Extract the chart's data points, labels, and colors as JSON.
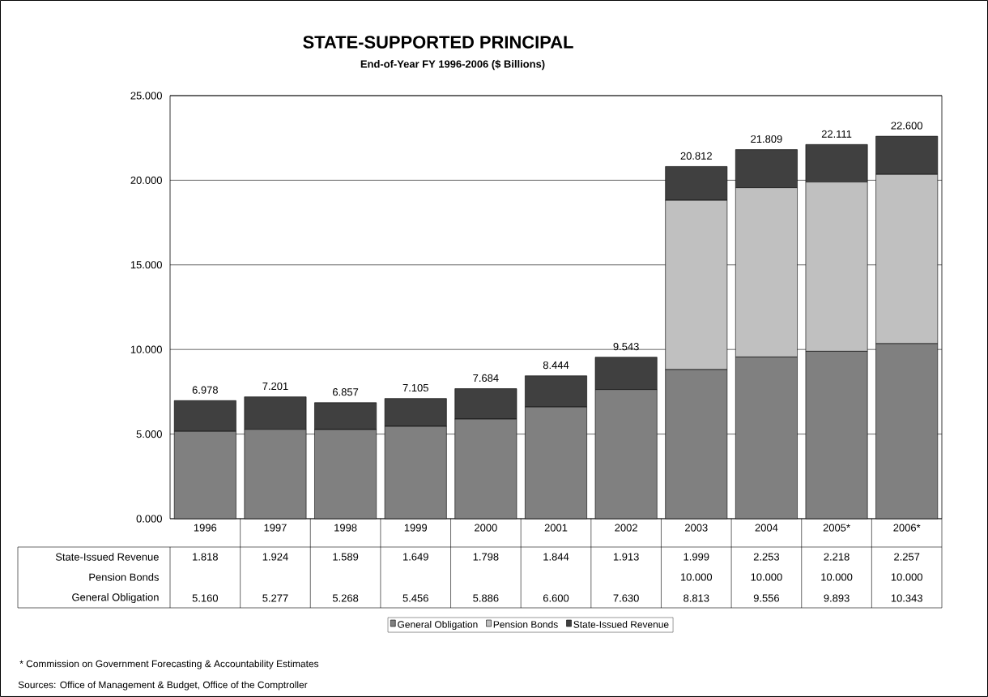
{
  "chart_data": {
    "type": "bar",
    "stacked": true,
    "title": "STATE-SUPPORTED PRINCIPAL",
    "subtitle": "End-of-Year FY 1996-2006  ($ Billions)",
    "categories": [
      "1996",
      "1997",
      "1998",
      "1999",
      "2000",
      "2001",
      "2002",
      "2003",
      "2004",
      "2005*",
      "2006*"
    ],
    "series": [
      {
        "name": "General Obligation",
        "color": "#808080",
        "values": [
          5.16,
          5.277,
          5.268,
          5.456,
          5.886,
          6.6,
          7.63,
          8.813,
          9.556,
          9.893,
          10.343
        ],
        "value_labels": [
          "5.160",
          "5.277",
          "5.268",
          "5.456",
          "5.886",
          "6.600",
          "7.630",
          "8.813",
          "9.556",
          "9.893",
          "10.343"
        ]
      },
      {
        "name": "Pension Bonds",
        "color": "#c0c0c0",
        "values": [
          null,
          null,
          null,
          null,
          null,
          null,
          null,
          10.0,
          10.0,
          10.0,
          10.0
        ],
        "value_labels": [
          null,
          null,
          null,
          null,
          null,
          null,
          null,
          "10.000",
          "10.000",
          "10.000",
          "10.000"
        ]
      },
      {
        "name": "State-Issued Revenue",
        "color": "#404040",
        "values": [
          1.818,
          1.924,
          1.589,
          1.649,
          1.798,
          1.844,
          1.913,
          1.999,
          2.253,
          2.218,
          2.257
        ],
        "value_labels": [
          "1.818",
          "1.924",
          "1.589",
          "1.649",
          "1.798",
          "1.844",
          "1.913",
          "1.999",
          "2.253",
          "2.218",
          "2.257"
        ]
      }
    ],
    "totals": [
      "6.978",
      "7.201",
      "6.857",
      "7.105",
      "7.684",
      "8.444",
      "9.543",
      "20.812",
      "21.809",
      "22.111",
      "22.600"
    ],
    "ylim": [
      0,
      25
    ],
    "yticks": [
      {
        "value": 0,
        "label": "0.000"
      },
      {
        "value": 5,
        "label": "5.000"
      },
      {
        "value": 10,
        "label": "10.000"
      },
      {
        "value": 15,
        "label": "15.000"
      },
      {
        "value": 20,
        "label": "20.000"
      },
      {
        "value": 25,
        "label": "25.000"
      }
    ],
    "grid": "y",
    "legend": "bottom",
    "annotations": [
      "* Commission on Government Forecasting & Accountability Estimates",
      "Sources: Office of Management & Budget, Office of the Comptroller"
    ]
  }
}
